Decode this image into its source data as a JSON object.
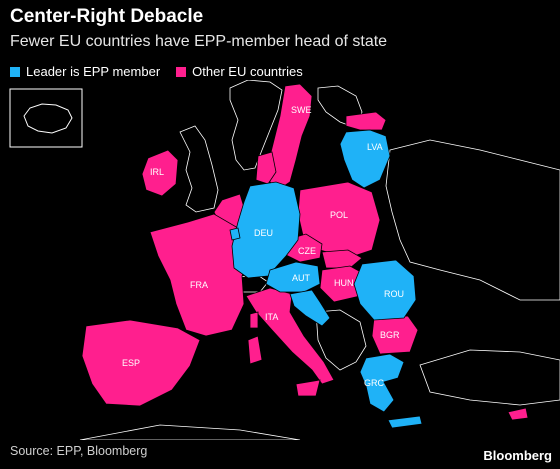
{
  "title": "Center-Right Debacle",
  "subtitle": "Fewer EU countries have EPP-member head of state",
  "legend": [
    {
      "label": "Leader is EPP member",
      "color": "#1fb2f7"
    },
    {
      "label": "Other EU countries",
      "color": "#ff1f8e"
    }
  ],
  "countries": {
    "SWE": "SWE",
    "LVA": "LVA",
    "IRL": "IRL",
    "POL": "POL",
    "DEU": "DEU",
    "CZE": "CZE",
    "FRA": "FRA",
    "AUT": "AUT",
    "HUN": "HUN",
    "ROU": "ROU",
    "ITA": "ITA",
    "BGR": "BGR",
    "ESP": "ESP",
    "GRC": "GRC"
  },
  "source": "Source: EPP, Bloomberg",
  "brand": "Bloomberg"
}
